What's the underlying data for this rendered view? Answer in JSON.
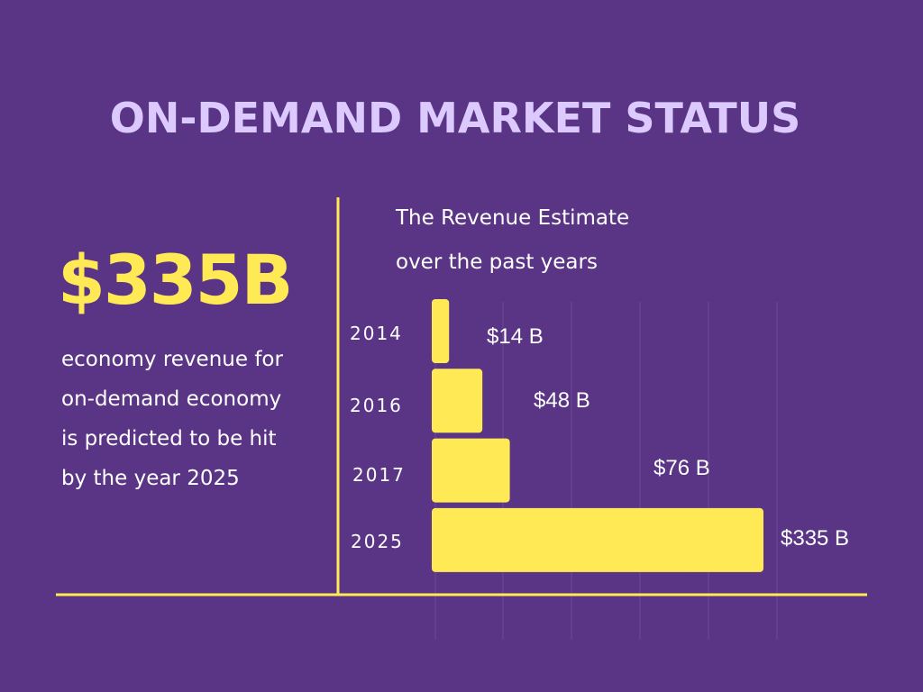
{
  "title": "ON-DEMAND MARKET STATUS",
  "headline": {
    "stat": "$335B",
    "description_lines": [
      "economy revenue for",
      "on-demand economy",
      "is predicted to be hit",
      "by the year 2025"
    ]
  },
  "chart_title_lines": [
    "The Revenue Estimate",
    "over the past years"
  ],
  "colors": {
    "background": "#5a3585",
    "title": "#dccaff",
    "accent": "#ffea56",
    "text": "#ffffff",
    "axis_label": "#ffffff"
  },
  "chart_data": {
    "type": "bar",
    "orientation": "horizontal",
    "categories": [
      "2014",
      "2016",
      "2017",
      "2025"
    ],
    "values": [
      14,
      48,
      76,
      335
    ],
    "data_labels": [
      "$14 B",
      "$48 B",
      "$76 B",
      "$335 B"
    ],
    "title": "The Revenue Estimate over the past years",
    "xlabel": "",
    "ylabel": "",
    "grid": true,
    "legend": "none"
  }
}
